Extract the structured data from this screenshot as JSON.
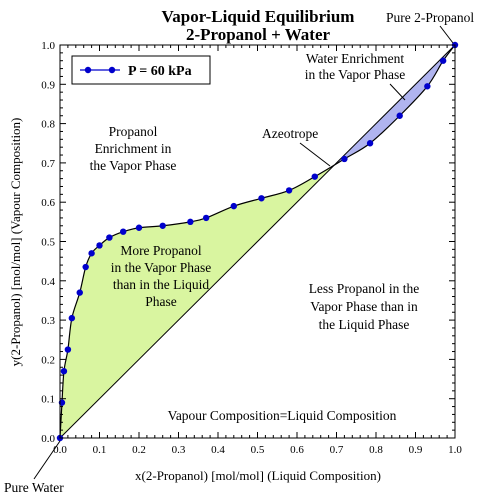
{
  "chart_data": {
    "type": "line",
    "title": "Vapor-Liquid Equilibrium",
    "subtitle": "2-Propanol + Water",
    "xlabel": "x(2-Propanol) [mol/mol] (Liquid Composition)",
    "ylabel": "y(2-Propanol) [mol/mol] (Vapour Composition)",
    "xlim": [
      0,
      1
    ],
    "ylim": [
      0,
      1
    ],
    "x_ticks": [
      "0.0",
      "0.1",
      "0.2",
      "0.3",
      "0.4",
      "0.5",
      "0.6",
      "0.7",
      "0.8",
      "0.9",
      "1.0"
    ],
    "y_ticks": [
      "0.0",
      "0.1",
      "0.2",
      "0.3",
      "0.4",
      "0.5",
      "0.6",
      "0.7",
      "0.8",
      "0.9",
      "1.0"
    ],
    "grid": false,
    "legend": {
      "position": "top-left",
      "label": "P = 60 kPa"
    },
    "series": [
      {
        "name": "P = 60 kPa",
        "color": "#0000cc",
        "x": [
          0.0,
          0.005,
          0.01,
          0.02,
          0.03,
          0.05,
          0.065,
          0.08,
          0.1,
          0.125,
          0.16,
          0.2,
          0.26,
          0.33,
          0.37,
          0.44,
          0.51,
          0.58,
          0.645,
          0.72,
          0.785,
          0.86,
          0.93,
          0.97,
          1.0
        ],
        "y": [
          0.0,
          0.09,
          0.17,
          0.225,
          0.305,
          0.37,
          0.435,
          0.47,
          0.49,
          0.51,
          0.525,
          0.535,
          0.54,
          0.55,
          0.56,
          0.59,
          0.61,
          0.63,
          0.665,
          0.71,
          0.75,
          0.82,
          0.895,
          0.96,
          1.0
        ]
      }
    ],
    "colors": {
      "vapor_enriched_fill": "#d9f5a0",
      "water_enriched_fill": "#b0b4ef",
      "curve": "#000000",
      "markers": "#0000cc"
    },
    "annotations": {
      "pure_propanol": "Pure 2-Propanol",
      "pure_water": "Pure Water",
      "azeotrope": "Azeotrope",
      "water_enrichment": [
        "Water Enrichment",
        "in the Vapor Phase"
      ],
      "propanol_enrichment": [
        "Propanol",
        "Enrichment in",
        "the Vapor Phase"
      ],
      "more_propanol": [
        "More Propanol",
        "in the Vapor Phase",
        "than in the Liquid",
        "Phase"
      ],
      "less_propanol": [
        "Less Propanol in the",
        "Vapor Phase than in",
        "the Liquid Phase"
      ],
      "diagonal": "Vapour Composition=Liquid Composition"
    }
  }
}
